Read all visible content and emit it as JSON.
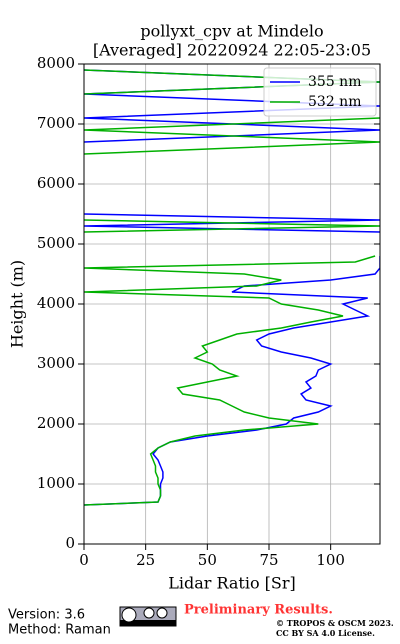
{
  "chart_data": {
    "type": "line",
    "orientation": "vertical",
    "title": "pollyxt_cpv at Mindelo",
    "subtitle": "[Averaged] 20220924 22:05-23:05",
    "x_label": "Lidar Ratio [Sr]",
    "y_label": "Height (m)",
    "y": [
      650,
      700,
      800,
      900,
      1000,
      1100,
      1200,
      1300,
      1400,
      1500,
      1600,
      1700,
      1800,
      1900,
      2000,
      2100,
      2200,
      2300,
      2400,
      2500,
      2600,
      2700,
      2800,
      2900,
      3000,
      3100,
      3200,
      3300,
      3400,
      3500,
      3600,
      3700,
      3800,
      3900,
      4000,
      4100,
      4200,
      4300,
      4400,
      4500,
      4600,
      4700,
      4800,
      5000,
      5200,
      5300,
      5400,
      5500,
      5800,
      6300,
      6500,
      6700,
      6900,
      7100,
      7300,
      7500,
      7700,
      7900
    ],
    "series": [
      {
        "name": "355 nm",
        "color": "#0000ff",
        "values": [
          0,
          30,
          31,
          31,
          31,
          32,
          32,
          31,
          30,
          28,
          30,
          35,
          50,
          70,
          82,
          85,
          95,
          100,
          90,
          88,
          92,
          90,
          94,
          95,
          100,
          92,
          80,
          72,
          70,
          75,
          85,
          100,
          115,
          110,
          105,
          115,
          60,
          65,
          100,
          118,
          120,
          120,
          120,
          null,
          120,
          0,
          120,
          0,
          null,
          120,
          null,
          0,
          120,
          0,
          120,
          0,
          120,
          0
        ]
      },
      {
        "name": "532 nm",
        "color": "#00b000",
        "values": [
          0,
          30,
          31,
          31,
          30,
          30,
          29,
          29,
          28,
          27,
          30,
          35,
          45,
          65,
          95,
          75,
          65,
          60,
          55,
          40,
          38,
          50,
          62,
          55,
          52,
          45,
          50,
          48,
          55,
          62,
          80,
          92,
          105,
          95,
          80,
          75,
          0,
          70,
          80,
          65,
          0,
          110,
          118,
          null,
          0,
          120,
          0,
          null,
          120,
          null,
          0,
          120,
          0,
          120,
          null,
          0,
          120,
          0
        ]
      }
    ],
    "xlim": [
      0,
      120
    ],
    "xticks": [
      0,
      25,
      50,
      75,
      100
    ],
    "ylim": [
      0,
      8000
    ],
    "yticks": [
      0,
      1000,
      2000,
      3000,
      4000,
      5000,
      6000,
      7000,
      8000
    ],
    "grid": true,
    "legend": "upper right"
  },
  "footer": {
    "version": "Version: 3.6",
    "method": "Method: Raman",
    "status": "Preliminary Results.",
    "copyright": "© TROPOS & OSCM 2023.",
    "license": "CC BY SA 4.0 License."
  }
}
